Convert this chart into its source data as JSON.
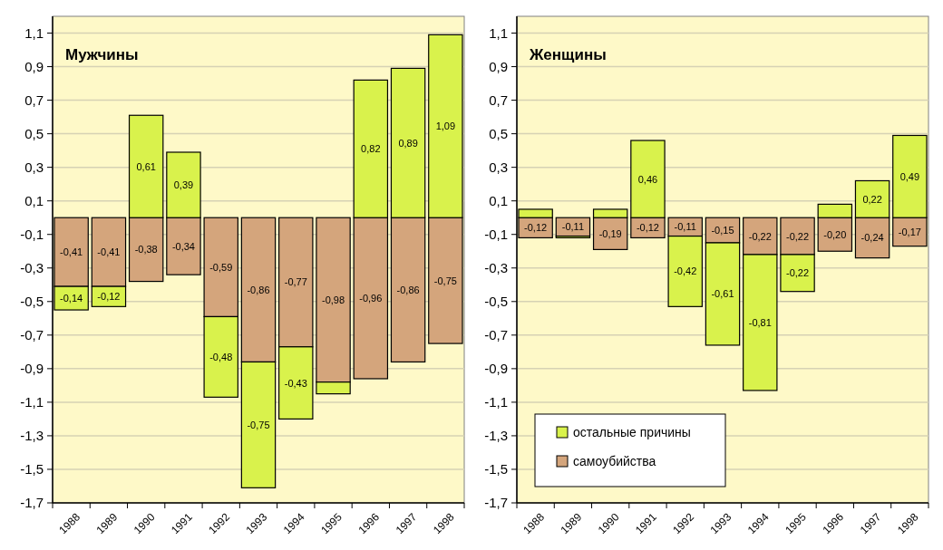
{
  "chart_data": [
    {
      "type": "bar",
      "title": "Мужчины",
      "stacked": true,
      "grid": "y",
      "legend": false,
      "categories": [
        "1988",
        "1989",
        "1990",
        "1991",
        "1992",
        "1993",
        "1994",
        "1995",
        "1996",
        "1997",
        "1998"
      ],
      "ylim": [
        -1.7,
        1.2
      ],
      "yticks": [
        {
          "value": -1.7,
          "label": "-1,7"
        },
        {
          "value": -1.5,
          "label": "-1,5"
        },
        {
          "value": -1.3,
          "label": "-1,3"
        },
        {
          "value": -1.1,
          "label": "-1,1"
        },
        {
          "value": -0.9,
          "label": "-0,9"
        },
        {
          "value": -0.7,
          "label": "-0,7"
        },
        {
          "value": -0.5,
          "label": "-0,5"
        },
        {
          "value": -0.3,
          "label": "-0,3"
        },
        {
          "value": -0.1,
          "label": "-0,1"
        },
        {
          "value": 0.1,
          "label": "0,1"
        },
        {
          "value": 0.3,
          "label": "0,3"
        },
        {
          "value": 0.5,
          "label": "0,5"
        },
        {
          "value": 0.7,
          "label": "0,7"
        },
        {
          "value": 0.9,
          "label": "0,9"
        },
        {
          "value": 1.1,
          "label": "1,1"
        }
      ],
      "series": [
        {
          "color": "#d4a57c",
          "values": [
            -0.41,
            -0.41,
            -0.38,
            -0.34,
            -0.59,
            -0.86,
            -0.77,
            -0.98,
            -0.96,
            -0.86,
            -0.75
          ],
          "value_labels": [
            "-0,41",
            "-0,41",
            "-0,38",
            "-0,34",
            "-0,59",
            "-0,86",
            "-0,77",
            "-0,98",
            "-0,96",
            "-0,86",
            "-0,75"
          ]
        },
        {
          "color": "#d9f24c",
          "values": [
            -0.14,
            -0.12,
            0.61,
            0.39,
            -0.48,
            -0.75,
            -0.43,
            -0.07,
            0.82,
            0.89,
            1.09
          ],
          "value_labels": [
            "-0,14",
            "-0,12",
            "0,61",
            "0,39",
            "-0,48",
            "-0,75",
            "-0,43",
            null,
            "0,82",
            "0,89",
            "1,09"
          ]
        }
      ]
    },
    {
      "type": "bar",
      "title": "Женщины",
      "stacked": true,
      "grid": "y",
      "legend": "bottom left",
      "categories": [
        "1988",
        "1989",
        "1990",
        "1991",
        "1992",
        "1993",
        "1994",
        "1995",
        "1996",
        "1997",
        "1998"
      ],
      "ylim": [
        -1.7,
        1.2
      ],
      "yticks": [
        {
          "value": -1.7,
          "label": "-1,7"
        },
        {
          "value": -1.5,
          "label": "-1,5"
        },
        {
          "value": -1.3,
          "label": "-1,3"
        },
        {
          "value": -1.1,
          "label": "-1,1"
        },
        {
          "value": -0.9,
          "label": "-0,9"
        },
        {
          "value": -0.7,
          "label": "-0,7"
        },
        {
          "value": -0.5,
          "label": "-0,5"
        },
        {
          "value": -0.3,
          "label": "-0,3"
        },
        {
          "value": -0.1,
          "label": "-0,1"
        },
        {
          "value": 0.1,
          "label": "0,1"
        },
        {
          "value": 0.3,
          "label": "0,3"
        },
        {
          "value": 0.5,
          "label": "0,5"
        },
        {
          "value": 0.7,
          "label": "0,7"
        },
        {
          "value": 0.9,
          "label": "0,9"
        },
        {
          "value": 1.1,
          "label": "1,1"
        }
      ],
      "series": [
        {
          "name": "самоубийства",
          "color": "#d4a57c",
          "values": [
            -0.12,
            -0.11,
            -0.19,
            -0.12,
            -0.11,
            -0.15,
            -0.22,
            -0.22,
            -0.2,
            -0.24,
            -0.17
          ],
          "value_labels": [
            "-0,12",
            "-0,11",
            "-0,19",
            "-0,12",
            "-0,11",
            "-0,15",
            "-0,22",
            "-0,22",
            "-0,20",
            "-0,24",
            "-0,17"
          ]
        },
        {
          "name": "остальные причины",
          "color": "#d9f24c",
          "values": [
            0.05,
            -0.01,
            0.05,
            0.46,
            -0.42,
            -0.61,
            -0.81,
            -0.22,
            0.08,
            0.22,
            0.49
          ],
          "value_labels": [
            null,
            null,
            null,
            "0,46",
            "-0,42",
            "-0,61",
            "-0,81",
            "-0,22",
            null,
            "0,22",
            "0,49"
          ]
        }
      ]
    }
  ]
}
